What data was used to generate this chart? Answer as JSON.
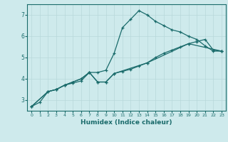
{
  "xlabel": "Humidex (Indice chaleur)",
  "xlim": [
    -0.5,
    23.5
  ],
  "ylim": [
    2.5,
    7.5
  ],
  "yticks": [
    3,
    4,
    5,
    6,
    7
  ],
  "xticks": [
    0,
    1,
    2,
    3,
    4,
    5,
    6,
    7,
    8,
    9,
    10,
    11,
    12,
    13,
    14,
    15,
    16,
    17,
    18,
    19,
    20,
    21,
    22,
    23
  ],
  "bg_color": "#ceeaec",
  "grid_color": "#b8d8da",
  "line_color": "#1a6b6b",
  "lines": [
    {
      "x": [
        0,
        1,
        2,
        3,
        4,
        5,
        6,
        7,
        8,
        9,
        10,
        11,
        12,
        13,
        14,
        15,
        16,
        17,
        18,
        19,
        20,
        21,
        22,
        23
      ],
      "y": [
        2.7,
        2.9,
        3.4,
        3.5,
        3.7,
        3.8,
        3.9,
        4.3,
        4.3,
        4.4,
        5.2,
        6.4,
        6.8,
        7.2,
        7.0,
        6.7,
        6.5,
        6.3,
        6.2,
        6.0,
        5.85,
        5.55,
        5.3,
        5.3
      ]
    },
    {
      "x": [
        0,
        2,
        3,
        4,
        5,
        6,
        7,
        8,
        9,
        10,
        11,
        12,
        13,
        14,
        15,
        16,
        17,
        18,
        19,
        20,
        21,
        22,
        23
      ],
      "y": [
        2.7,
        3.4,
        3.5,
        3.7,
        3.85,
        4.0,
        4.3,
        3.85,
        3.85,
        4.25,
        4.35,
        4.45,
        4.6,
        4.75,
        5.0,
        5.2,
        5.35,
        5.5,
        5.65,
        5.75,
        5.85,
        5.35,
        5.3
      ]
    },
    {
      "x": [
        0,
        2,
        3,
        4,
        5,
        6,
        7,
        8,
        9,
        10,
        14,
        19,
        23
      ],
      "y": [
        2.7,
        3.4,
        3.5,
        3.7,
        3.85,
        4.0,
        4.3,
        3.85,
        3.85,
        4.25,
        4.75,
        5.65,
        5.3
      ]
    }
  ]
}
